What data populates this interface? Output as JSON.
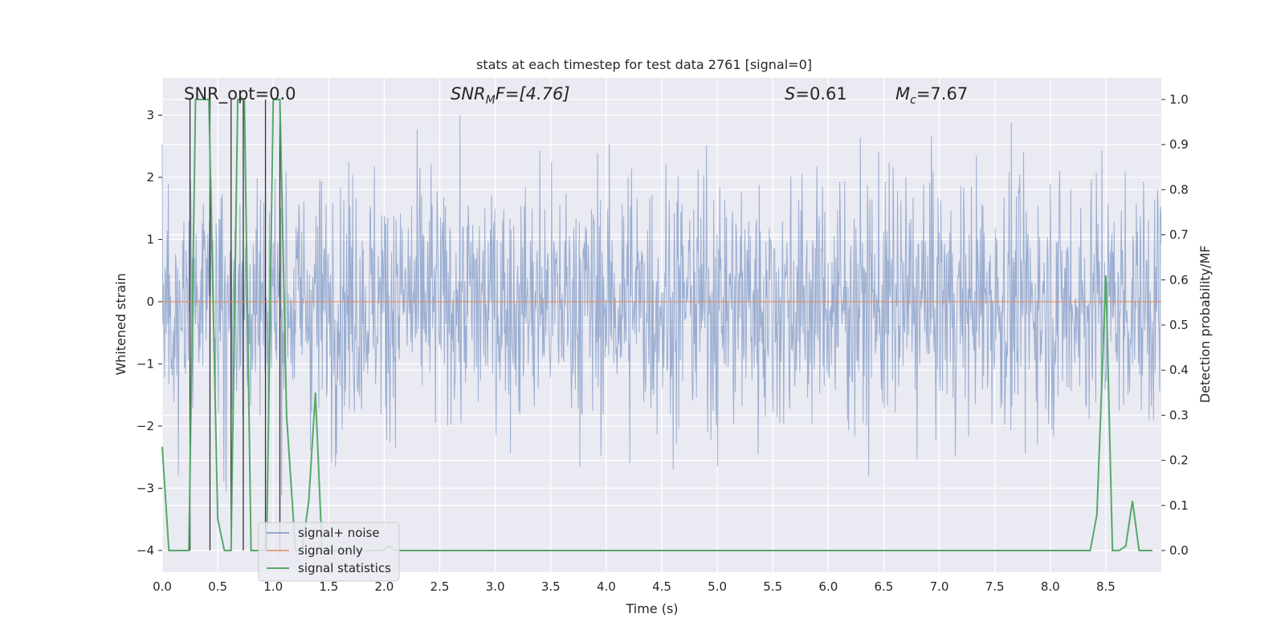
{
  "chart_data": {
    "type": "line",
    "title": "stats at each timestep for test data 2761 [signal=0]",
    "xlabel": "Time (s)",
    "ylabel": "Whitened strain",
    "y2label": "Detection probability/MF",
    "xlim": [
      0,
      9
    ],
    "ylim": [
      -4.35,
      3.6
    ],
    "y2lim": [
      -0.048,
      1.048
    ],
    "xticks": [
      "0.0",
      "0.5",
      "1.0",
      "1.5",
      "2.0",
      "2.5",
      "3.0",
      "3.5",
      "4.0",
      "4.5",
      "5.0",
      "5.5",
      "6.0",
      "6.5",
      "7.0",
      "7.5",
      "8.0",
      "8.5"
    ],
    "yticks": [
      "−4",
      "−3",
      "−2",
      "−1",
      "0",
      "1",
      "2",
      "3"
    ],
    "y2ticks": [
      "0.0",
      "0.1",
      "0.2",
      "0.3",
      "0.4",
      "0.5",
      "0.6",
      "0.7",
      "0.8",
      "0.9",
      "1.0"
    ],
    "grid": true,
    "legend_position": "lower-left",
    "annotations": {
      "snr_opt": "SNR_opt=0.0",
      "snr_mf_prefix": "SNR",
      "snr_mf_sub": "M",
      "snr_mf_suffix": "F=[4.76]",
      "s_prefix": "S",
      "s_suffix": "=0.61",
      "mc_prefix": "M",
      "mc_sub": "c",
      "mc_suffix": "=7.67"
    },
    "series": [
      {
        "name": "signal+ noise",
        "color": "#4c72b0",
        "kind": "noise",
        "noise_range": [
          -4.0,
          3.25
        ],
        "typical_std": 1.0,
        "sample_count": 1800,
        "seed": 2761
      },
      {
        "name": "signal only",
        "color": "#dd8452",
        "kind": "constant",
        "value": 0.0
      },
      {
        "name": "signal statistics",
        "color": "#55a868",
        "axis": "y2",
        "x": [
          0.0,
          0.06,
          0.1,
          0.16,
          0.24,
          0.3,
          0.36,
          0.42,
          0.5,
          0.56,
          0.62,
          0.68,
          0.74,
          0.8,
          0.88,
          0.94,
          1.0,
          1.06,
          1.12,
          1.2,
          1.26,
          1.32,
          1.38,
          1.44,
          1.5,
          1.56,
          1.62,
          1.68,
          1.74,
          1.8,
          1.86,
          1.92,
          1.98,
          2.04,
          2.1,
          2.2,
          2.4,
          3.0,
          4.0,
          5.0,
          6.0,
          7.0,
          8.0,
          8.3,
          8.36,
          8.42,
          8.5,
          8.56,
          8.62,
          8.68,
          8.74,
          8.8,
          8.86,
          8.92
        ],
        "values": [
          0.23,
          0.0,
          0.0,
          0.0,
          0.0,
          1.0,
          1.0,
          1.0,
          0.07,
          0.0,
          0.0,
          1.0,
          1.0,
          0.0,
          0.0,
          0.0,
          1.0,
          1.0,
          0.3,
          0.0,
          0.0,
          0.11,
          0.35,
          0.0,
          0.0,
          0.0,
          0.0,
          0.0,
          0.0,
          0.0,
          0.0,
          0.0,
          0.0,
          0.01,
          0.0,
          0.0,
          0.0,
          0.0,
          0.0,
          0.0,
          0.0,
          0.0,
          0.0,
          0.0,
          0.0,
          0.08,
          0.61,
          0.0,
          0.0,
          0.01,
          0.11,
          0.0,
          0.0,
          0.0
        ]
      }
    ],
    "marker_lines": {
      "color": "#333333",
      "x": [
        0.25,
        0.43,
        0.62,
        0.73,
        0.93,
        1.06
      ],
      "y_top": 3.25,
      "y_bottom": -4.0
    }
  }
}
